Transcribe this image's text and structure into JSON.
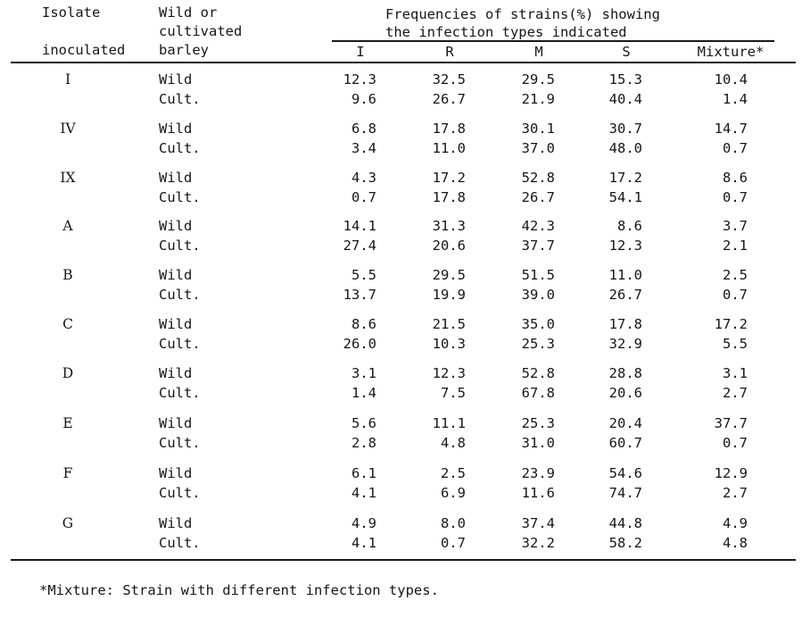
{
  "header": {
    "isolate_line1": "Isolate",
    "isolate_line2": "inoculated",
    "wild_line1": "Wild or",
    "wild_line2": "cultivated",
    "wild_line3": "barley",
    "freq_line1": "Frequencies of strains(%) showing",
    "freq_line2": "the infection types indicated",
    "col_i": "I",
    "col_r": "R",
    "col_m": "M",
    "col_s": "S",
    "col_mixture": "Mixture*"
  },
  "groups": [
    {
      "isolate": "I",
      "rows": [
        {
          "type": "Wild",
          "values": [
            "12.3",
            "32.5",
            "29.5",
            "15.3",
            "10.4"
          ]
        },
        {
          "type": "Cult.",
          "values": [
            "9.6",
            "26.7",
            "21.9",
            "40.4",
            "1.4"
          ]
        }
      ]
    },
    {
      "isolate": "IV",
      "rows": [
        {
          "type": "Wild",
          "values": [
            "6.8",
            "17.8",
            "30.1",
            "30.7",
            "14.7"
          ]
        },
        {
          "type": "Cult.",
          "values": [
            "3.4",
            "11.0",
            "37.0",
            "48.0",
            "0.7"
          ]
        }
      ]
    },
    {
      "isolate": "IX",
      "rows": [
        {
          "type": "Wild",
          "values": [
            "4.3",
            "17.2",
            "52.8",
            "17.2",
            "8.6"
          ]
        },
        {
          "type": "Cult.",
          "values": [
            "0.7",
            "17.8",
            "26.7",
            "54.1",
            "0.7"
          ]
        }
      ]
    },
    {
      "isolate": "A",
      "rows": [
        {
          "type": "Wild",
          "values": [
            "14.1",
            "31.3",
            "42.3",
            "8.6",
            "3.7"
          ]
        },
        {
          "type": "Cult.",
          "values": [
            "27.4",
            "20.6",
            "37.7",
            "12.3",
            "2.1"
          ]
        }
      ]
    },
    {
      "isolate": "B",
      "rows": [
        {
          "type": "Wild",
          "values": [
            "5.5",
            "29.5",
            "51.5",
            "11.0",
            "2.5"
          ]
        },
        {
          "type": "Cult.",
          "values": [
            "13.7",
            "19.9",
            "39.0",
            "26.7",
            "0.7"
          ]
        }
      ]
    },
    {
      "isolate": "C",
      "rows": [
        {
          "type": "Wild",
          "values": [
            "8.6",
            "21.5",
            "35.0",
            "17.8",
            "17.2"
          ]
        },
        {
          "type": "Cult.",
          "values": [
            "26.0",
            "10.3",
            "25.3",
            "32.9",
            "5.5"
          ]
        }
      ]
    },
    {
      "isolate": "D",
      "rows": [
        {
          "type": "Wild",
          "values": [
            "3.1",
            "12.3",
            "52.8",
            "28.8",
            "3.1"
          ]
        },
        {
          "type": "Cult.",
          "values": [
            "1.4",
            "7.5",
            "67.8",
            "20.6",
            "2.7"
          ]
        }
      ]
    },
    {
      "isolate": "E",
      "rows": [
        {
          "type": "Wild",
          "values": [
            "5.6",
            "11.1",
            "25.3",
            "20.4",
            "37.7"
          ]
        },
        {
          "type": "Cult.",
          "values": [
            "2.8",
            "4.8",
            "31.0",
            "60.7",
            "0.7"
          ]
        }
      ]
    },
    {
      "isolate": "F",
      "rows": [
        {
          "type": "Wild",
          "values": [
            "6.1",
            "2.5",
            "23.9",
            "54.6",
            "12.9"
          ]
        },
        {
          "type": "Cult.",
          "values": [
            "4.1",
            "6.9",
            "11.6",
            "74.7",
            "2.7"
          ]
        }
      ]
    },
    {
      "isolate": "G",
      "rows": [
        {
          "type": "Wild",
          "values": [
            "4.9",
            "8.0",
            "37.4",
            "44.8",
            "4.9"
          ]
        },
        {
          "type": "Cult.",
          "values": [
            "4.1",
            "0.7",
            "32.2",
            "58.2",
            "4.8"
          ]
        }
      ]
    }
  ],
  "footnote": "*Mixture: Strain with different infection types."
}
